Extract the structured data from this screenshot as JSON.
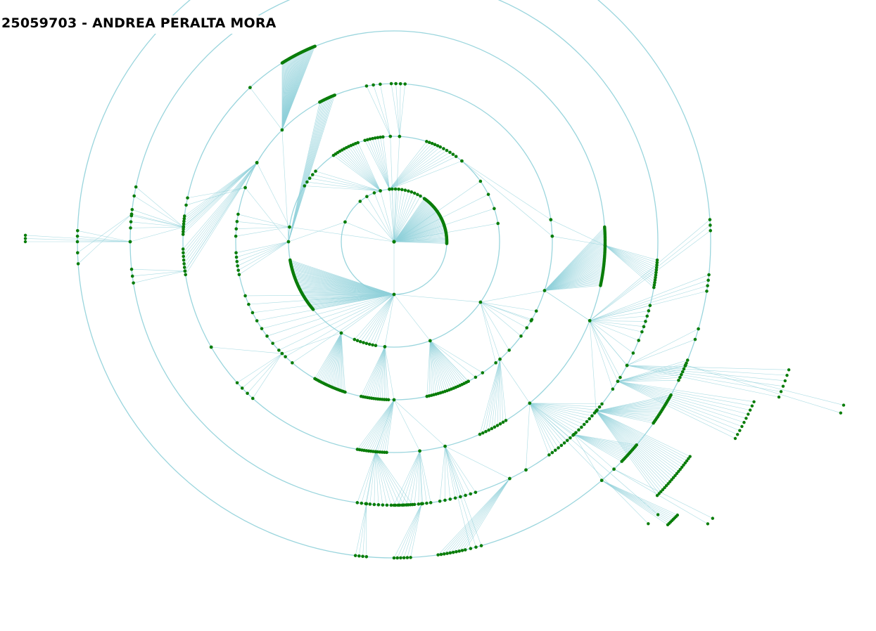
{
  "header": {
    "title": "25059703 - ANDREA PERALTA MORA"
  },
  "colors": {
    "ring": "#9ad5dd",
    "link": "#8fd0da",
    "node": "#0a7d0a",
    "title": "#000000",
    "background": "#ffffff"
  },
  "tree": {
    "type": "radial-tree",
    "levels": 6
  }
}
